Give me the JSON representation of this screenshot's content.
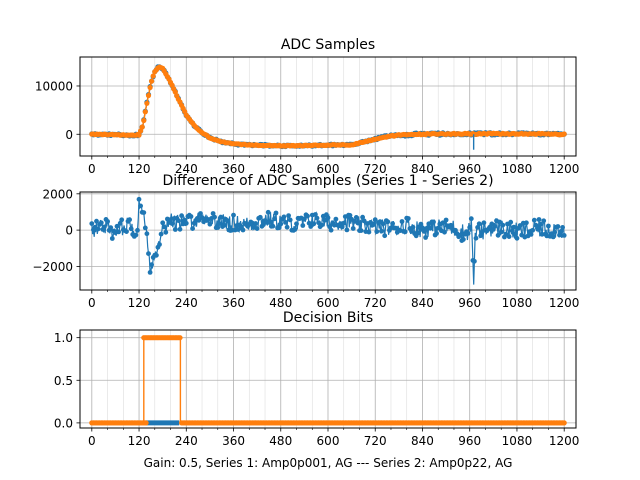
{
  "chart_data": [
    {
      "type": "scatter",
      "title": "ADC Samples",
      "xlim": [
        -30,
        1230
      ],
      "ylim": [
        -4500,
        16000
      ],
      "x_ticks": [
        0,
        120,
        240,
        360,
        480,
        600,
        720,
        840,
        960,
        1080,
        1200
      ],
      "y_ticks": [
        0,
        10000
      ],
      "grid": true,
      "series": [
        {
          "color": "#1f77b4",
          "x": [
            0,
            60,
            100,
            120,
            130,
            140,
            150,
            160,
            170,
            180,
            190,
            200,
            210,
            220,
            230,
            240,
            260,
            280,
            300,
            330,
            360,
            400,
            450,
            500,
            560,
            620,
            660,
            700,
            740,
            780,
            820,
            860,
            900,
            960,
            1000,
            1050,
            1100,
            1150,
            1200
          ],
          "y": [
            0,
            -100,
            -200,
            -100,
            2000,
            6500,
            10500,
            13000,
            14000,
            13600,
            12300,
            10800,
            9100,
            7300,
            5600,
            4000,
            1800,
            300,
            -700,
            -1600,
            -2000,
            -2200,
            -2300,
            -2400,
            -2300,
            -2200,
            -2200,
            -1400,
            -600,
            -200,
            0,
            50,
            80,
            100,
            120,
            100,
            80,
            100,
            0
          ]
        },
        {
          "color": "#ff7f0e",
          "x": [
            0,
            60,
            100,
            120,
            130,
            140,
            150,
            160,
            170,
            180,
            190,
            200,
            210,
            220,
            230,
            240,
            260,
            280,
            300,
            330,
            360,
            400,
            450,
            500,
            560,
            620,
            660,
            700,
            740,
            780,
            820,
            860,
            900,
            960,
            1000,
            1050,
            1100,
            1150,
            1200
          ],
          "y": [
            0,
            -100,
            -200,
            -100,
            2000,
            6500,
            10500,
            13000,
            14000,
            13600,
            12300,
            10800,
            9100,
            7300,
            5600,
            4000,
            1800,
            300,
            -700,
            -1600,
            -2000,
            -2200,
            -2300,
            -2400,
            -2300,
            -2200,
            -2200,
            -1400,
            -600,
            -200,
            0,
            50,
            80,
            100,
            120,
            100,
            80,
            100,
            0
          ]
        }
      ]
    },
    {
      "type": "line",
      "title": "Difference of ADC Samples (Series 1 - Series 2)",
      "xlim": [
        -30,
        1230
      ],
      "ylim": [
        -3300,
        2100
      ],
      "x_ticks": [
        0,
        120,
        240,
        360,
        480,
        600,
        720,
        840,
        960,
        1080,
        1200
      ],
      "y_ticks": [
        -2000,
        0,
        2000
      ],
      "grid": true,
      "series": [
        {
          "color": "#1f77b4",
          "x": [
            0,
            30,
            60,
            90,
            115,
            120,
            130,
            140,
            145,
            150,
            160,
            170,
            180,
            200,
            240,
            280,
            320,
            360,
            400,
            440,
            480,
            520,
            560,
            600,
            640,
            680,
            720,
            760,
            800,
            840,
            880,
            920,
            950,
            965,
            970,
            975,
            990,
            1020,
            1080,
            1140,
            1200
          ],
          "y": [
            0,
            300,
            -200,
            400,
            -100,
            1700,
            800,
            -200,
            -1600,
            -2300,
            -1200,
            -600,
            200,
            500,
            400,
            700,
            500,
            400,
            300,
            600,
            500,
            300,
            600,
            400,
            500,
            300,
            200,
            100,
            300,
            0,
            200,
            100,
            -200,
            300,
            -3000,
            0,
            -100,
            200,
            -100,
            100,
            0
          ]
        }
      ]
    },
    {
      "type": "line",
      "title": "Decision Bits",
      "xlabel": "Gain: 0.5, Series 1: Amp0p001, AG --- Series 2: Amp0p22, AG",
      "xlim": [
        -30,
        1230
      ],
      "ylim": [
        -0.06,
        1.09
      ],
      "x_ticks": [
        0,
        120,
        240,
        360,
        480,
        600,
        720,
        840,
        960,
        1080,
        1200
      ],
      "y_ticks": [
        0.0,
        0.5,
        1.0
      ],
      "grid": true,
      "series": [
        {
          "color": "#1f77b4",
          "x": [
            0,
            1200
          ],
          "y": [
            0,
            0
          ]
        },
        {
          "color": "#ff7f0e",
          "x": [
            0,
            132,
            132,
            225,
            225,
            1200
          ],
          "y": [
            0,
            0,
            1,
            1,
            0,
            0
          ]
        }
      ],
      "blue_segment": {
        "x": [
          138,
          222
        ],
        "y": [
          0,
          0
        ]
      },
      "orange_on_range": [
        132,
        225
      ]
    }
  ]
}
